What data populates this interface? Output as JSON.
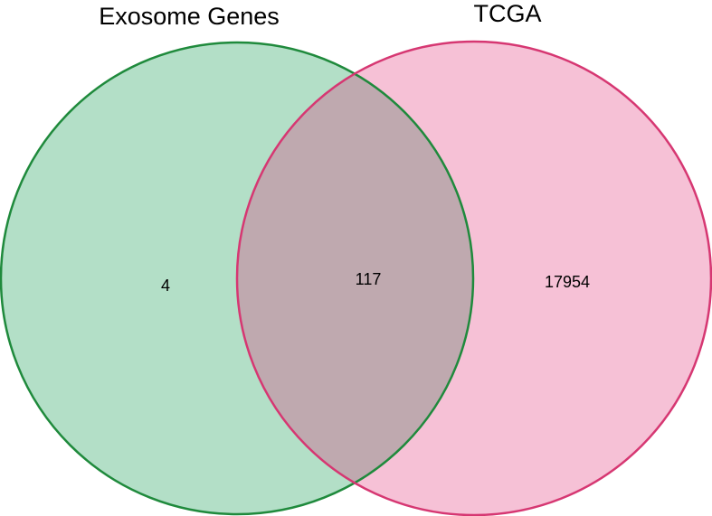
{
  "venn": {
    "sets": [
      {
        "name": "Exosome Genes",
        "fill": "#b3dfc7",
        "stroke": "#1f8a3c"
      },
      {
        "name": "TCGA",
        "fill": "#f6c1d6",
        "stroke": "#d63772"
      }
    ],
    "intersection_fill": "#bfa9af",
    "counts": {
      "only_exosome_genes": "4",
      "both": "117",
      "only_tcga": "17954"
    }
  }
}
